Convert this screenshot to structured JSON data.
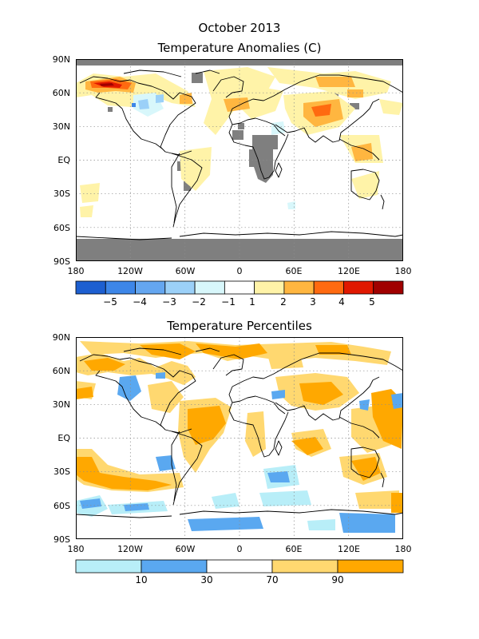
{
  "figure": {
    "title": "October 2013",
    "panels": [
      {
        "title": "Temperature Anomalies (C)",
        "colorbar_labels": [
          "−5",
          "−4",
          "−3",
          "−2",
          "−1",
          "1",
          "2",
          "3",
          "4",
          "5"
        ],
        "colorbar_colors": [
          "#1d5fd0",
          "#3d86e8",
          "#64a6f0",
          "#9bd0f8",
          "#d8f7fb",
          "#ffffff",
          "#fff3a8",
          "#ffb640",
          "#ff6a10",
          "#e01800",
          "#a00000"
        ]
      },
      {
        "title": "Temperature Percentiles",
        "colorbar_labels": [
          "10",
          "30",
          "70",
          "90"
        ],
        "colorbar_colors": [
          "#b8eef8",
          "#5aa8f0",
          "#ffffff",
          "#ffd870",
          "#ffa800"
        ]
      }
    ],
    "lat_labels": [
      "90N",
      "60N",
      "30N",
      "EQ",
      "30S",
      "60S",
      "90S"
    ],
    "lon_labels": [
      "180",
      "120W",
      "60W",
      "0",
      "60E",
      "120E",
      "180"
    ],
    "colors": {
      "missing": "#7f7f7f",
      "coast": "#000000",
      "grid": "#8c8c8c"
    }
  }
}
